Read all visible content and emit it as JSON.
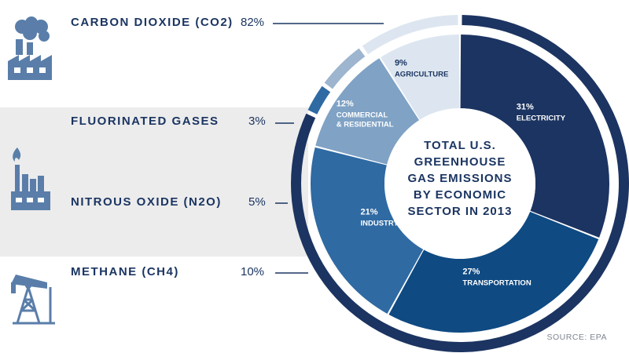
{
  "center_title": [
    "TOTAL U.S.",
    "GREENHOUSE",
    "GAS EMISSIONS",
    "BY ECONOMIC",
    "SECTOR IN 2013"
  ],
  "source": "SOURCE: EPA",
  "colors": {
    "navy": "#1b3562",
    "band": "#ececec",
    "text": "#1b3562"
  },
  "icons": [
    "factory-smoke-icon",
    "factory-flame-icon",
    "oil-pump-icon"
  ],
  "chart_data": [
    {
      "type": "pie",
      "title": "TOTAL U.S. GREENHOUSE GAS EMISSIONS BY ECONOMIC SECTOR IN 2013",
      "categories": [
        "ELECTRICITY",
        "TRANSPORTATION",
        "INDUSTRY",
        "COMMERCIAL & RESIDENTIAL",
        "AGRICULTURE"
      ],
      "values": [
        31,
        27,
        21,
        12,
        9
      ],
      "labels": [
        "31%",
        "27%",
        "21%",
        "12%",
        "9%"
      ],
      "colors": [
        "#1c3461",
        "#0f4a82",
        "#2f6aa3",
        "#7fa2c5",
        "#dde6f0"
      ]
    },
    {
      "type": "pie",
      "categories": [
        "CARBON DIOXIDE (CO2)",
        "FLUORINATED GASES",
        "NITROUS OXIDE (N2O)",
        "METHANE (CH4)"
      ],
      "values": [
        82,
        3,
        5,
        10
      ],
      "labels": [
        "82%",
        "3%",
        "5%",
        "10%"
      ],
      "colors": [
        "#1c3461",
        "#2f6aa3",
        "#9db5cf",
        "#dde6f0"
      ]
    }
  ]
}
